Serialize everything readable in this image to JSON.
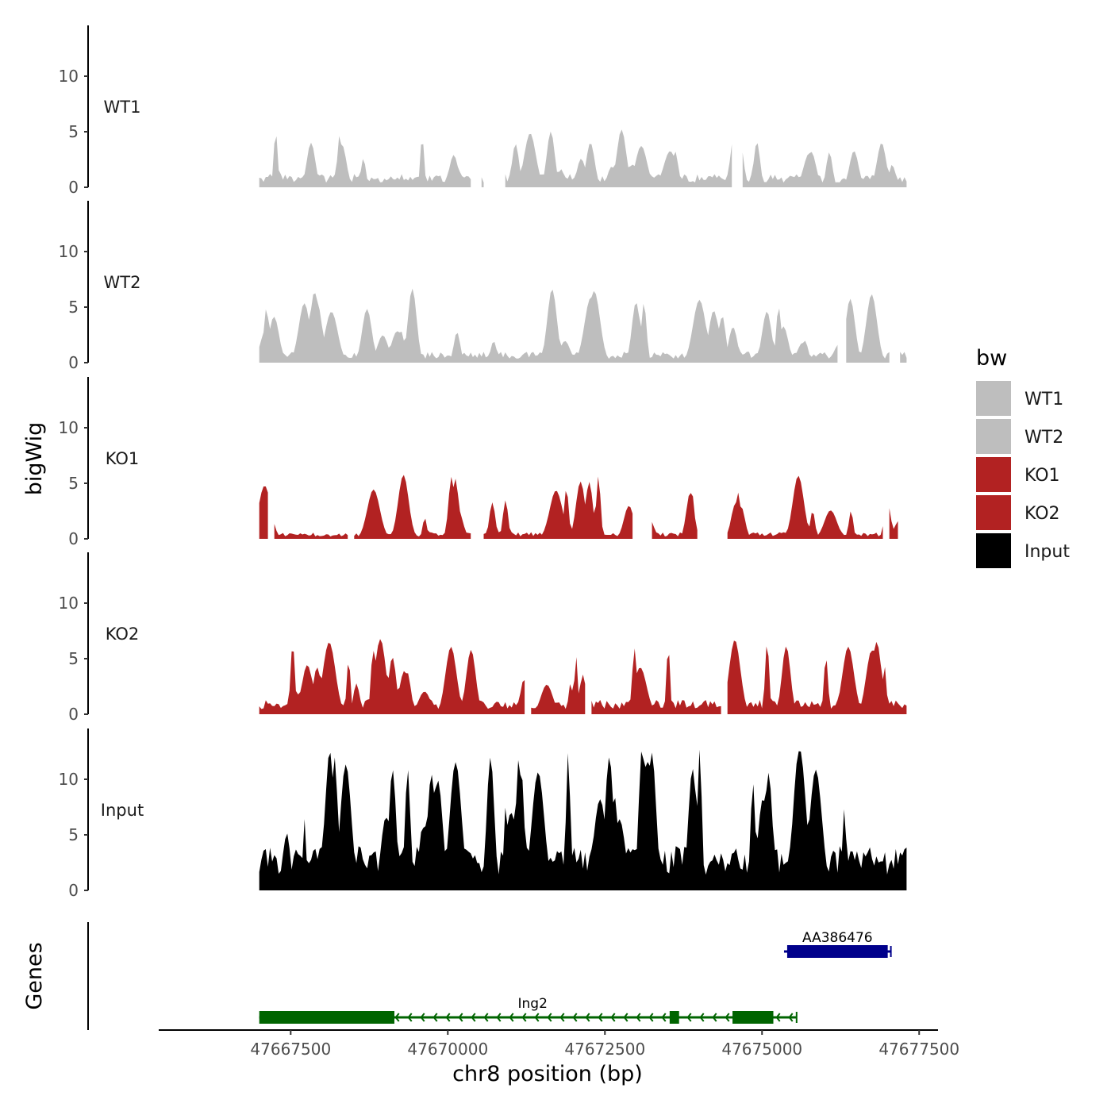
{
  "chart_data": {
    "type": "area",
    "y_axis_title": "bigWig",
    "x_axis_title": "chr8 position (bp)",
    "genes_panel_title": "Genes",
    "xlim": [
      47665400,
      47677800
    ],
    "signal_range": [
      47667000,
      47677300
    ],
    "ylim": [
      0,
      14
    ],
    "y_ticks": [
      0,
      5,
      10
    ],
    "x_ticks": [
      47667500,
      47670000,
      47672500,
      47675000,
      47677500
    ],
    "x_tick_labels": [
      "47667500",
      "47670000",
      "47672500",
      "47675000",
      "47677500"
    ],
    "legend": {
      "title": "bw",
      "entries": [
        {
          "name": "WT1",
          "color": "#bebebe"
        },
        {
          "name": "WT2",
          "color": "#bebebe"
        },
        {
          "name": "KO1",
          "color": "#b22222"
        },
        {
          "name": "KO2",
          "color": "#b22222"
        },
        {
          "name": "Input",
          "color": "#000000"
        }
      ]
    },
    "series": [
      {
        "name": "WT1",
        "color": "#bebebe",
        "seed": 11,
        "base": 1.2,
        "peak_count": 34,
        "peak_max": 5.7,
        "gaps": [
          [
            47670380,
            47670510
          ],
          [
            47670600,
            47670880
          ],
          [
            47674550,
            47674680
          ]
        ]
      },
      {
        "name": "WT2",
        "color": "#bebebe",
        "seed": 23,
        "base": 1.0,
        "peak_count": 36,
        "peak_max": 6.7,
        "gaps": [
          [
            47676220,
            47676330
          ],
          [
            47677050,
            47677180
          ]
        ]
      },
      {
        "name": "KO1",
        "color": "#b22222",
        "seed": 37,
        "base": 0.6,
        "peak_count": 30,
        "peak_max": 6.1,
        "gaps": [
          [
            47667150,
            47667230
          ],
          [
            47668420,
            47668500
          ],
          [
            47670380,
            47670560
          ],
          [
            47672960,
            47673240
          ],
          [
            47673970,
            47674420
          ],
          [
            47676930,
            47677000
          ],
          [
            47677170,
            47677300
          ]
        ]
      },
      {
        "name": "KO2",
        "color": "#b22222",
        "seed": 53,
        "base": 1.3,
        "peak_count": 34,
        "peak_max": 6.8,
        "gaps": [
          [
            47671250,
            47671300
          ],
          [
            47672200,
            47672260
          ],
          [
            47674350,
            47674420
          ]
        ]
      },
      {
        "name": "Input",
        "color": "#000000",
        "seed": 71,
        "base": 4.0,
        "peak_count": 46,
        "peak_max": 13.8,
        "gaps": []
      }
    ],
    "genes": [
      {
        "name": "Ing2",
        "color": "#006400",
        "row": 2,
        "strand": "-",
        "start": 47667000,
        "end": 47675550,
        "exons": [
          [
            47667000,
            47669150
          ],
          [
            47673530,
            47673680
          ],
          [
            47674530,
            47675180
          ]
        ],
        "label_pos": 47671350
      },
      {
        "name": "AA386476",
        "color": "#00008b",
        "row": 1,
        "strand": "+",
        "start": 47675350,
        "end": 47677050,
        "exons": [
          [
            47675400,
            47677000
          ]
        ],
        "label_pos": 47676200
      }
    ]
  }
}
